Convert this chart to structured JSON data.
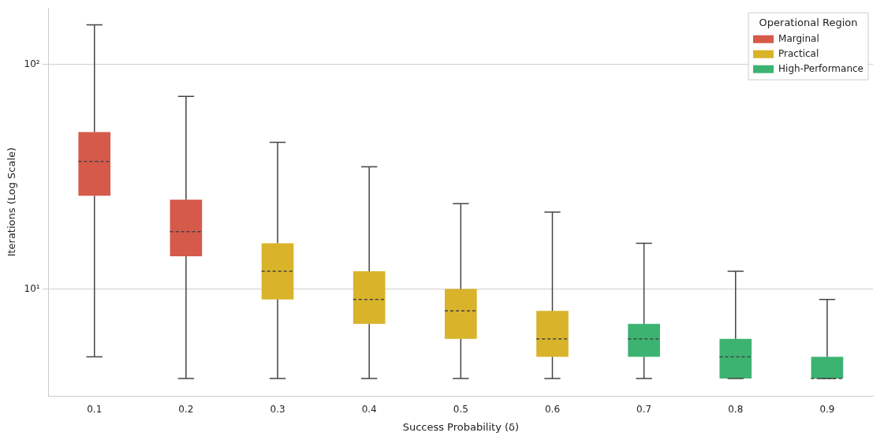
{
  "chart_data": {
    "type": "box",
    "xlabel": "Success Probability (δ)",
    "ylabel": "Iterations (Log Scale)",
    "legend_title": "Operational Region",
    "categories": [
      "0.1",
      "0.2",
      "0.3",
      "0.4",
      "0.5",
      "0.6",
      "0.7",
      "0.8",
      "0.9"
    ],
    "log": true,
    "ylim": [
      3.35,
      178
    ],
    "yticks": [
      {
        "value": 10,
        "label": "10¹"
      },
      {
        "value": 100,
        "label": "10²"
      }
    ],
    "grid": "y",
    "legend": "top right",
    "series": [
      {
        "name": "Marginal",
        "color": "#d65a4a",
        "boxes": [
          {
            "low": 5,
            "q1": 26,
            "median": 37,
            "q3": 50,
            "high": 150
          },
          {
            "low": 4,
            "q1": 14,
            "median": 18,
            "q3": 25,
            "high": 72
          },
          null,
          null,
          null,
          null,
          null,
          null,
          null
        ]
      },
      {
        "name": "Practical",
        "color": "#d9b32a",
        "boxes": [
          null,
          null,
          {
            "low": 4,
            "q1": 9,
            "median": 12,
            "q3": 16,
            "high": 45
          },
          {
            "low": 4,
            "q1": 7,
            "median": 9,
            "q3": 12,
            "high": 35
          },
          {
            "low": 4,
            "q1": 6,
            "median": 8,
            "q3": 10,
            "high": 24
          },
          {
            "low": 4,
            "q1": 5,
            "median": 6,
            "q3": 8,
            "high": 22
          },
          null,
          null,
          null
        ]
      },
      {
        "name": "High-Performance",
        "color": "#3cb371",
        "boxes": [
          null,
          null,
          null,
          null,
          null,
          null,
          {
            "low": 4,
            "q1": 5,
            "median": 6,
            "q3": 7,
            "high": 16
          },
          {
            "low": 4,
            "q1": 4,
            "median": 5,
            "q3": 6,
            "high": 12
          },
          {
            "low": 4,
            "q1": 4,
            "median": 4,
            "q3": 5,
            "high": 9
          }
        ]
      }
    ]
  }
}
